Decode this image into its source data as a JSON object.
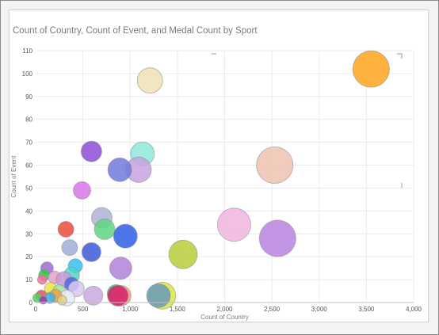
{
  "chart_data": {
    "type": "scatter",
    "title": "Count of Country, Count of Event, and Medal Count by Sport",
    "xlabel": "Count of Country",
    "ylabel": "Count of Event",
    "size_measure": "Medal Count",
    "xlim": [
      0,
      4000
    ],
    "ylim": [
      0,
      110
    ],
    "xticks": [
      0,
      500,
      1000,
      1500,
      2000,
      2500,
      3000,
      3500,
      4000
    ],
    "xtick_labels": [
      "0",
      "500",
      "1,000",
      "1,500",
      "2,000",
      "2,500",
      "3,000",
      "3,500",
      "4,000"
    ],
    "yticks": [
      0,
      10,
      20,
      30,
      40,
      50,
      60,
      70,
      80,
      90,
      100,
      110
    ],
    "ytick_labels": [
      "0",
      "10",
      "20",
      "30",
      "40",
      "50",
      "60",
      "70",
      "80",
      "90",
      "100",
      "110"
    ],
    "grid": true,
    "legend": "none",
    "points": [
      {
        "x": 3550,
        "y": 102,
        "r": 23,
        "color": "#ffa41b"
      },
      {
        "x": 1210,
        "y": 97,
        "r": 16,
        "color": "#f0e2b6"
      },
      {
        "x": 2530,
        "y": 60,
        "r": 23,
        "color": "#efc3b2"
      },
      {
        "x": 2100,
        "y": 34,
        "r": 21,
        "color": "#f2b5dd"
      },
      {
        "x": 2560,
        "y": 28,
        "r": 23,
        "color": "#b884e0"
      },
      {
        "x": 1560,
        "y": 21,
        "r": 18,
        "color": "#b8cc3a"
      },
      {
        "x": 1130,
        "y": 65,
        "r": 15,
        "color": "#8ee8da"
      },
      {
        "x": 1090,
        "y": 58,
        "r": 16,
        "color": "#c7a3e0"
      },
      {
        "x": 890,
        "y": 58,
        "r": 15,
        "color": "#7079dc"
      },
      {
        "x": 590,
        "y": 66,
        "r": 13,
        "color": "#8b4ed6"
      },
      {
        "x": 490,
        "y": 49,
        "r": 11,
        "color": "#d777e8"
      },
      {
        "x": 700,
        "y": 37,
        "r": 13,
        "color": "#aeb3d6"
      },
      {
        "x": 730,
        "y": 32,
        "r": 13,
        "color": "#5ed682"
      },
      {
        "x": 950,
        "y": 29,
        "r": 15,
        "color": "#2e5ee8"
      },
      {
        "x": 320,
        "y": 32,
        "r": 10,
        "color": "#e64c3c"
      },
      {
        "x": 360,
        "y": 24,
        "r": 10,
        "color": "#9fb0d8"
      },
      {
        "x": 590,
        "y": 22,
        "r": 12,
        "color": "#3b5cd6"
      },
      {
        "x": 900,
        "y": 15,
        "r": 14,
        "color": "#b083d8"
      },
      {
        "x": 420,
        "y": 16,
        "r": 9,
        "color": "#36c0f0"
      },
      {
        "x": 380,
        "y": 12,
        "r": 10,
        "color": "#55d6c6"
      },
      {
        "x": 120,
        "y": 15,
        "r": 8,
        "color": "#9e6ad6"
      },
      {
        "x": 90,
        "y": 12,
        "r": 7,
        "color": "#2ecc40"
      },
      {
        "x": 200,
        "y": 11,
        "r": 8,
        "color": "#e6a0c8"
      },
      {
        "x": 300,
        "y": 10,
        "r": 10,
        "color": "#c89ad6"
      },
      {
        "x": 380,
        "y": 8,
        "r": 9,
        "color": "#4c6ae0"
      },
      {
        "x": 430,
        "y": 6,
        "r": 10,
        "color": "#d8c8f0"
      },
      {
        "x": 70,
        "y": 10,
        "r": 6,
        "color": "#f070a0"
      },
      {
        "x": 160,
        "y": 6,
        "r": 8,
        "color": "#f0e040"
      },
      {
        "x": 250,
        "y": 5,
        "r": 8,
        "color": "#9ae8a0"
      },
      {
        "x": 60,
        "y": 3,
        "r": 7,
        "color": "#e85050"
      },
      {
        "x": 330,
        "y": 2,
        "r": 10,
        "color": "#e8e8f8"
      },
      {
        "x": 210,
        "y": 3,
        "r": 8,
        "color": "#f0a040"
      },
      {
        "x": 20,
        "y": 2,
        "r": 6,
        "color": "#55d060"
      },
      {
        "x": 150,
        "y": 2,
        "r": 7,
        "color": "#40b0e0"
      },
      {
        "x": 610,
        "y": 3,
        "r": 12,
        "color": "#c8a8e0"
      },
      {
        "x": 850,
        "y": 4,
        "r": 11,
        "color": "#2ed080"
      },
      {
        "x": 900,
        "y": 3,
        "r": 13,
        "color": "#e8a078"
      },
      {
        "x": 870,
        "y": 3,
        "r": 13,
        "color": "#d81e6e"
      },
      {
        "x": 1340,
        "y": 3,
        "r": 17,
        "color": "#d8e840"
      },
      {
        "x": 1300,
        "y": 3,
        "r": 15,
        "color": "#6a9abb"
      },
      {
        "x": 80,
        "y": 1,
        "r": 5,
        "color": "#8e44ad"
      },
      {
        "x": 280,
        "y": 1,
        "r": 6,
        "color": "#e0d080"
      }
    ]
  }
}
